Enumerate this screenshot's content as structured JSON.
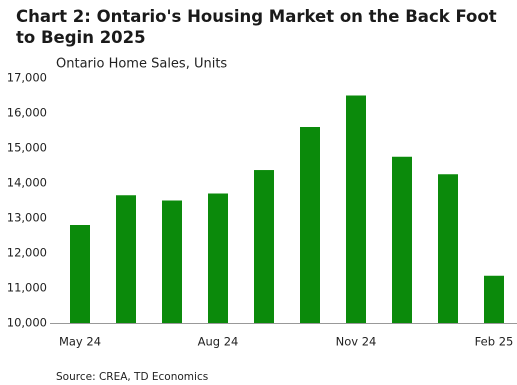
{
  "chart_data": {
    "type": "bar",
    "title": "Chart 2: Ontario's Housing Market on the Back Foot to Begin 2025",
    "subtitle": "Ontario Home Sales, Units",
    "source": "Source: CREA,  TD Economics",
    "categories": [
      "May 24",
      null,
      null,
      "Aug 24",
      null,
      null,
      "Nov 24",
      null,
      null,
      "Feb 25"
    ],
    "values": [
      12800,
      13650,
      13500,
      13700,
      14370,
      15600,
      16500,
      14750,
      14250,
      11350
    ],
    "color": "#0b8a0b",
    "ylim": [
      10000,
      17000
    ],
    "yticks": [
      {
        "value": 10000,
        "label": "10,000"
      },
      {
        "value": 11000,
        "label": "11,000"
      },
      {
        "value": 12000,
        "label": "12,000"
      },
      {
        "value": 13000,
        "label": "13,000"
      },
      {
        "value": 14000,
        "label": "14,000"
      },
      {
        "value": 15000,
        "label": "15,000"
      },
      {
        "value": 16000,
        "label": "16,000"
      },
      {
        "value": 17000,
        "label": "17,000"
      }
    ],
    "grid": false
  }
}
